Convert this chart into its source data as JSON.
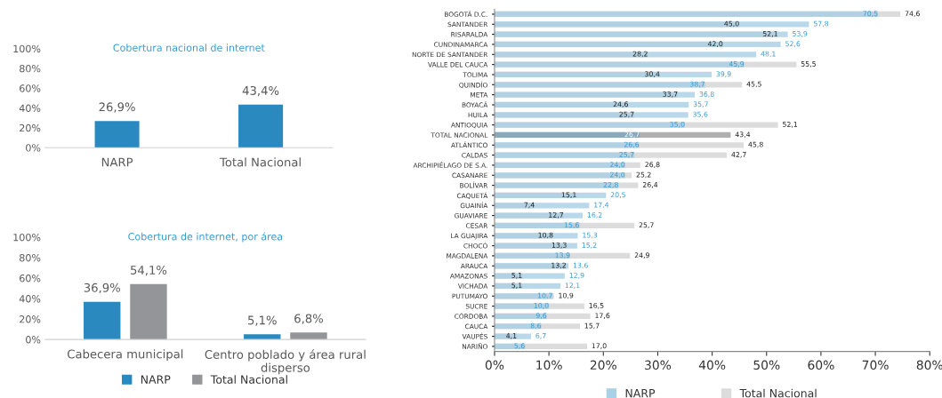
{
  "chart_data": [
    {
      "type": "bar",
      "title": "Cobertura nacional de internet",
      "categories": [
        "NARP",
        "Total Nacional"
      ],
      "values": [
        26.9,
        43.4
      ],
      "color": "#2a8abf",
      "value_labels": [
        "26,9%",
        "43,4%"
      ],
      "ylim": [
        0,
        100
      ],
      "yticks": [
        {
          "value": 0,
          "label": "0%"
        },
        {
          "value": 20,
          "label": "20%"
        },
        {
          "value": 40,
          "label": "40%"
        },
        {
          "value": 60,
          "label": "60%"
        },
        {
          "value": 80,
          "label": "80%"
        },
        {
          "value": 100,
          "label": "100%"
        }
      ],
      "grid": false,
      "legend": false
    },
    {
      "type": "bar",
      "title": "Cobertura de internet, por área",
      "categories": [
        "Cabecera municipal",
        "Centro poblado y área rural\ndisperso"
      ],
      "series": [
        {
          "name": "NARP",
          "color": "#2a8abf",
          "values": [
            36.9,
            5.1
          ],
          "value_labels": [
            "36,9%",
            "5,1%"
          ]
        },
        {
          "name": "Total Nacional",
          "color": "#939598",
          "values": [
            54.1,
            6.8
          ],
          "value_labels": [
            "54,1%",
            "6,8%"
          ]
        }
      ],
      "ylim": [
        0,
        100
      ],
      "yticks": [
        {
          "value": 0,
          "label": "0%"
        },
        {
          "value": 20,
          "label": "20%"
        },
        {
          "value": 40,
          "label": "40%"
        },
        {
          "value": 60,
          "label": "60%"
        },
        {
          "value": 80,
          "label": "80%"
        },
        {
          "value": 100,
          "label": "100%"
        }
      ],
      "grid": false,
      "legend": "bottom"
    },
    {
      "type": "bar",
      "orientation": "horizontal",
      "categories": [
        "BOGOTÁ D.C.",
        "SANTANDER",
        "RISARALDA",
        "CUNDINAMARCA",
        "NORTE DE SANTANDER",
        "VALLE DEL CAUCA",
        "TOLIMA",
        "QUINDÍO",
        "META",
        "BOYACÁ",
        "HUILA",
        "ANTIOQUIA",
        "TOTAL NACIONAL",
        "ATLÁNTICO",
        "CALDAS",
        "ARCHIPIÉLAGO DE S.A.",
        "CASANARE",
        "BOLÍVAR",
        "CAQUETÁ",
        "GUAINÍA",
        "GUAVIARE",
        "CESAR",
        "LA GUAJIRA",
        "CHOCÓ",
        "MAGDALENA",
        "ARAUCA",
        "AMAZONAS",
        "VICHADA",
        "PUTUMAYO",
        "SUCRE",
        "CÓRDOBA",
        "CAUCA",
        "VAUPÉS",
        "NARIÑO"
      ],
      "series": [
        {
          "name": "Total Nacional",
          "color": "#dcdcdc",
          "colors": [
            "#dcdcdc",
            "#dcdcdc",
            "#dcdcdc",
            "#dcdcdc",
            "#dcdcdc",
            "#dcdcdc",
            "#dcdcdc",
            "#dcdcdc",
            "#dcdcdc",
            "#dcdcdc",
            "#dcdcdc",
            "#dcdcdc",
            "#b0b0b0",
            "#dcdcdc",
            "#dcdcdc",
            "#dcdcdc",
            "#dcdcdc",
            "#dcdcdc",
            "#dcdcdc",
            "#dcdcdc",
            "#dcdcdc",
            "#dcdcdc",
            "#dcdcdc",
            "#dcdcdc",
            "#dcdcdc",
            "#dcdcdc",
            "#dcdcdc",
            "#dcdcdc",
            "#dcdcdc",
            "#dcdcdc",
            "#dcdcdc",
            "#dcdcdc",
            "#dcdcdc",
            "#dcdcdc"
          ],
          "values": [
            74.6,
            45.0,
            52.1,
            42.0,
            28.2,
            55.5,
            30.4,
            45.5,
            33.7,
            24.6,
            25.7,
            52.1,
            43.4,
            45.8,
            42.7,
            26.8,
            25.2,
            26.4,
            15.1,
            7.4,
            12.7,
            25.7,
            10.8,
            13.3,
            24.9,
            13.2,
            5.1,
            5.1,
            10.9,
            16.5,
            17.6,
            15.7,
            4.1,
            17.0
          ],
          "value_labels": [
            "74,6",
            "45,0",
            "52,1",
            "42,0",
            "28,2",
            "55,5",
            "30,4",
            "45,5",
            "33,7",
            "24,6",
            "25,7",
            "52,1",
            "43,4",
            "45,8",
            "42,7",
            "26,8",
            "25,2",
            "26,4",
            "15,1",
            "7,4",
            "12,7",
            "25,7",
            "10,8",
            "13,3",
            "24,9",
            "13,2",
            "5,1",
            "5,1",
            "10,9",
            "16,5",
            "17,6",
            "15,7",
            "4,1",
            "17,0"
          ]
        },
        {
          "name": "NARP",
          "color": "#a8d0e6",
          "colors": [
            "#a8d0e6",
            "#a8d0e6",
            "#a8d0e6",
            "#a8d0e6",
            "#a8d0e6",
            "#a8d0e6",
            "#a8d0e6",
            "#a8d0e6",
            "#a8d0e6",
            "#a8d0e6",
            "#a8d0e6",
            "#a8d0e6",
            "#7fa9c0",
            "#a8d0e6",
            "#a8d0e6",
            "#a8d0e6",
            "#a8d0e6",
            "#a8d0e6",
            "#a8d0e6",
            "#a8d0e6",
            "#a8d0e6",
            "#a8d0e6",
            "#a8d0e6",
            "#a8d0e6",
            "#a8d0e6",
            "#a8d0e6",
            "#a8d0e6",
            "#a8d0e6",
            "#a8d0e6",
            "#a8d0e6",
            "#a8d0e6",
            "#a8d0e6",
            "#a8d0e6",
            "#a8d0e6"
          ],
          "values": [
            70.5,
            57.8,
            53.9,
            52.6,
            48.1,
            45.9,
            39.9,
            38.7,
            36.8,
            35.7,
            35.6,
            35.0,
            26.7,
            26.6,
            25.7,
            24.0,
            24.0,
            22.8,
            20.5,
            17.4,
            16.2,
            15.6,
            15.3,
            15.2,
            13.9,
            13.6,
            12.9,
            12.1,
            10.7,
            10.0,
            9.6,
            8.6,
            6.7,
            5.6
          ],
          "value_labels": [
            "70,5",
            "57,8",
            "53,9",
            "52,6",
            "48,1",
            "45,9",
            "39,9",
            "38,7",
            "36,8",
            "35,7",
            "35,6",
            "35,0",
            "26,7",
            "26,6",
            "25,7",
            "24,0",
            "24,0",
            "22,8",
            "20,5",
            "17,4",
            "16,2",
            "15,6",
            "15,3",
            "15,2",
            "13,9",
            "13,6",
            "12,9",
            "12,1",
            "10,7",
            "10,0",
            "9,6",
            "8,6",
            "6,7",
            "5,6"
          ]
        }
      ],
      "xlim": [
        0,
        80
      ],
      "xticks": [
        {
          "value": 0,
          "label": "0%"
        },
        {
          "value": 10,
          "label": "10%"
        },
        {
          "value": 20,
          "label": "20%"
        },
        {
          "value": 30,
          "label": "30%"
        },
        {
          "value": 40,
          "label": "40%"
        },
        {
          "value": 50,
          "label": "50%"
        },
        {
          "value": 60,
          "label": "60%"
        },
        {
          "value": 70,
          "label": "70%"
        },
        {
          "value": 80,
          "label": "80%"
        }
      ],
      "grid": false,
      "legend": "bottom"
    }
  ]
}
